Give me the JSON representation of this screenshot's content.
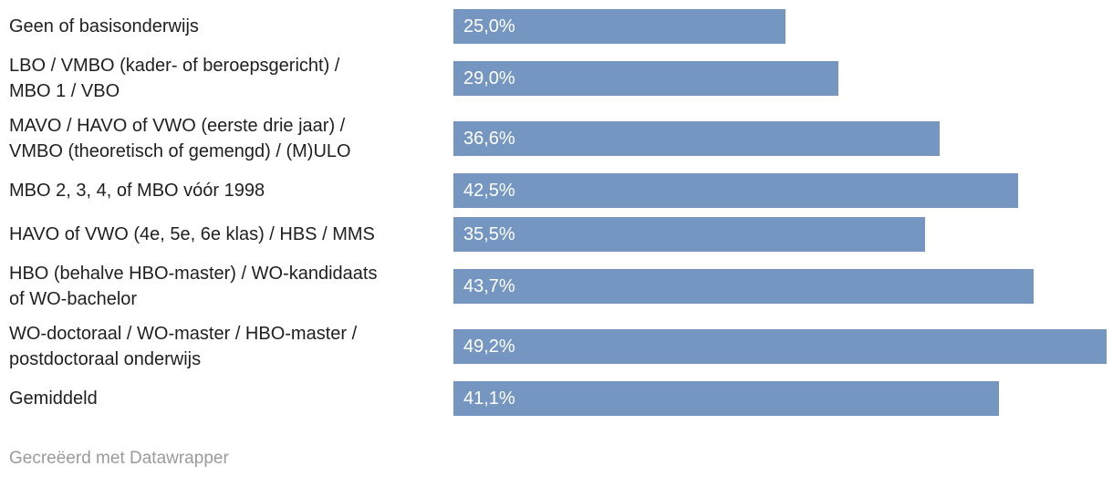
{
  "chart_data": {
    "type": "bar",
    "orientation": "horizontal",
    "title": "",
    "xlabel": "",
    "ylabel": "",
    "xlim": [
      0,
      49.2
    ],
    "grid": false,
    "legend": "none",
    "bar_color": "#7496c0",
    "categories": [
      "Geen of basisonderwijs",
      "LBO / VMBO (kader- of beroepsgericht) /\nMBO 1 / VBO",
      "MAVO / HAVO of VWO (eerste drie jaar) /\nVMBO (theoretisch of gemengd) / (M)ULO",
      "MBO 2, 3, 4, of MBO vóór 1998",
      "HAVO of VWO (4e, 5e, 6e klas) / HBS / MMS",
      "HBO (behalve HBO-master) / WO-kandidaats\nof WO-bachelor",
      "WO-doctoraal / WO-master / HBO-master /\npostdoctoraal onderwijs",
      "Gemiddeld"
    ],
    "values": [
      25.0,
      29.0,
      36.6,
      42.5,
      35.5,
      43.7,
      49.2,
      41.1
    ],
    "value_labels": [
      "25,0%",
      "29,0%",
      "36,6%",
      "42,5%",
      "35,5%",
      "43,7%",
      "49,2%",
      "41,1%"
    ]
  },
  "colors": {
    "bar": "#7496c0",
    "label_text": "#1f1f1f",
    "value_text": "#ffffff",
    "footer_text": "#9b9b9b"
  },
  "footer": {
    "credit": "Gecreëerd met Datawrapper"
  }
}
